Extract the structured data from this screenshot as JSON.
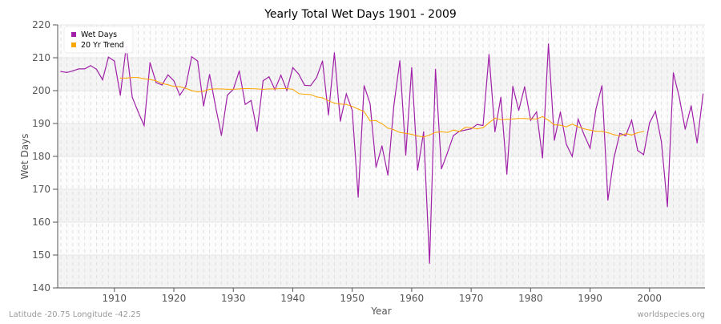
{
  "chart_data": {
    "type": "line",
    "title": "Yearly Total Wet Days 1901 - 2009",
    "xlabel": "Year",
    "ylabel": "Wet Days",
    "xlim": [
      1901,
      2009
    ],
    "ylim": [
      140,
      220
    ],
    "xticks": [
      1910,
      1920,
      1930,
      1940,
      1950,
      1960,
      1970,
      1980,
      1990,
      2000
    ],
    "yticks": [
      140,
      150,
      160,
      170,
      180,
      190,
      200,
      210,
      220
    ],
    "grid": true,
    "legend_placement": "top-left",
    "series": [
      {
        "name": "Wet Days",
        "color": "#a020a8",
        "x": [
          1901,
          1902,
          1903,
          1904,
          1905,
          1906,
          1907,
          1908,
          1909,
          1910,
          1911,
          1912,
          1913,
          1914,
          1915,
          1916,
          1917,
          1918,
          1919,
          1920,
          1921,
          1922,
          1923,
          1924,
          1925,
          1926,
          1927,
          1928,
          1929,
          1930,
          1931,
          1932,
          1933,
          1934,
          1935,
          1936,
          1937,
          1938,
          1939,
          1940,
          1941,
          1942,
          1943,
          1944,
          1945,
          1946,
          1947,
          1948,
          1949,
          1950,
          1951,
          1952,
          1953,
          1954,
          1955,
          1956,
          1957,
          1958,
          1959,
          1960,
          1961,
          1962,
          1963,
          1964,
          1965,
          1966,
          1967,
          1968,
          1969,
          1970,
          1971,
          1972,
          1973,
          1974,
          1975,
          1976,
          1977,
          1978,
          1979,
          1980,
          1981,
          1982,
          1983,
          1984,
          1985,
          1986,
          1987,
          1988,
          1989,
          1990,
          1991,
          1992,
          1993,
          1994,
          1995,
          1996,
          1997,
          1998,
          1999,
          2000,
          2001,
          2002,
          2003,
          2004,
          2005,
          2006,
          2007,
          2008,
          2009
        ],
        "values": [
          205.8,
          205.5,
          206.0,
          206.6,
          206.6,
          207.6,
          206.5,
          203.3,
          210.2,
          209.0,
          198.6,
          213.5,
          198.0,
          193.5,
          189.4,
          208.5,
          202.5,
          201.7,
          204.8,
          203.0,
          198.6,
          201.3,
          210.3,
          209.0,
          195.3,
          204.9,
          195.3,
          186.4,
          198.6,
          200.4,
          206.0,
          195.8,
          197.0,
          187.6,
          203.0,
          204.2,
          200.3,
          204.7,
          200.1,
          207.0,
          205.0,
          201.6,
          201.5,
          204.0,
          209.0,
          192.6,
          211.5,
          190.7,
          199.0,
          194.0,
          167.6,
          201.5,
          196.0,
          176.7,
          183.2,
          174.3,
          195.4,
          209.1,
          180.4,
          207.0,
          175.8,
          187.5,
          147.5,
          206.5,
          176.2,
          181.0,
          186.3,
          187.6,
          188.0,
          188.4,
          189.7,
          189.4,
          211.0,
          187.5,
          198.0,
          174.6,
          201.3,
          194.0,
          201.2,
          191.0,
          193.5,
          179.5,
          214.2,
          184.9,
          193.5,
          183.7,
          180.0,
          191.3,
          186.5,
          182.5,
          194.5,
          201.5,
          166.7,
          179.5,
          187.0,
          186.3,
          191.0,
          181.8,
          180.5,
          190.2,
          193.7,
          184.5,
          164.7,
          205.4,
          198.0,
          188.3,
          195.4,
          184.1,
          199.0
        ]
      },
      {
        "name": "20 Yr Trend",
        "color": "#ffa500",
        "x": [
          1911,
          1912,
          1913,
          1914,
          1915,
          1916,
          1917,
          1918,
          1919,
          1920,
          1921,
          1922,
          1923,
          1924,
          1925,
          1926,
          1927,
          1928,
          1929,
          1930,
          1931,
          1932,
          1933,
          1934,
          1935,
          1936,
          1937,
          1938,
          1939,
          1940,
          1941,
          1942,
          1943,
          1944,
          1945,
          1946,
          1947,
          1948,
          1949,
          1950,
          1951,
          1952,
          1953,
          1954,
          1955,
          1956,
          1957,
          1958,
          1959,
          1960,
          1961,
          1962,
          1963,
          1964,
          1965,
          1966,
          1967,
          1968,
          1969,
          1970,
          1971,
          1972,
          1973,
          1974,
          1975,
          1976,
          1977,
          1978,
          1979,
          1980,
          1981,
          1982,
          1983,
          1984,
          1985,
          1986,
          1987,
          1988,
          1989,
          1990,
          1991,
          1992,
          1993,
          1994,
          1995,
          1996,
          1997,
          1998,
          1999
        ],
        "values": [
          203.8,
          203.8,
          204.0,
          204.0,
          203.6,
          203.4,
          203.0,
          202.2,
          201.8,
          201.3,
          201.2,
          200.7,
          200.0,
          199.6,
          199.8,
          200.4,
          200.5,
          200.5,
          200.4,
          200.4,
          200.5,
          200.6,
          200.6,
          200.5,
          200.4,
          200.5,
          200.5,
          200.6,
          200.6,
          200.4,
          199.1,
          198.9,
          198.8,
          198.1,
          197.8,
          196.9,
          196.2,
          195.9,
          195.8,
          195.2,
          194.4,
          193.6,
          190.8,
          190.9,
          189.9,
          188.6,
          188.1,
          187.3,
          187.0,
          186.7,
          186.2,
          185.9,
          186.5,
          187.3,
          187.5,
          187.3,
          188.0,
          187.6,
          188.8,
          188.7,
          188.4,
          188.7,
          190.2,
          191.6,
          191.2,
          191.3,
          191.4,
          191.5,
          191.5,
          191.4,
          191.4,
          192.1,
          191.0,
          189.6,
          189.5,
          189.0,
          189.8,
          189.0,
          188.4,
          188.0,
          187.6,
          187.6,
          187.2,
          186.6,
          186.2,
          186.9,
          186.5,
          187.2,
          187.6
        ]
      }
    ]
  },
  "footer": {
    "location": "Latitude -20.75 Longitude -42.25",
    "source": "worldspecies.org"
  }
}
